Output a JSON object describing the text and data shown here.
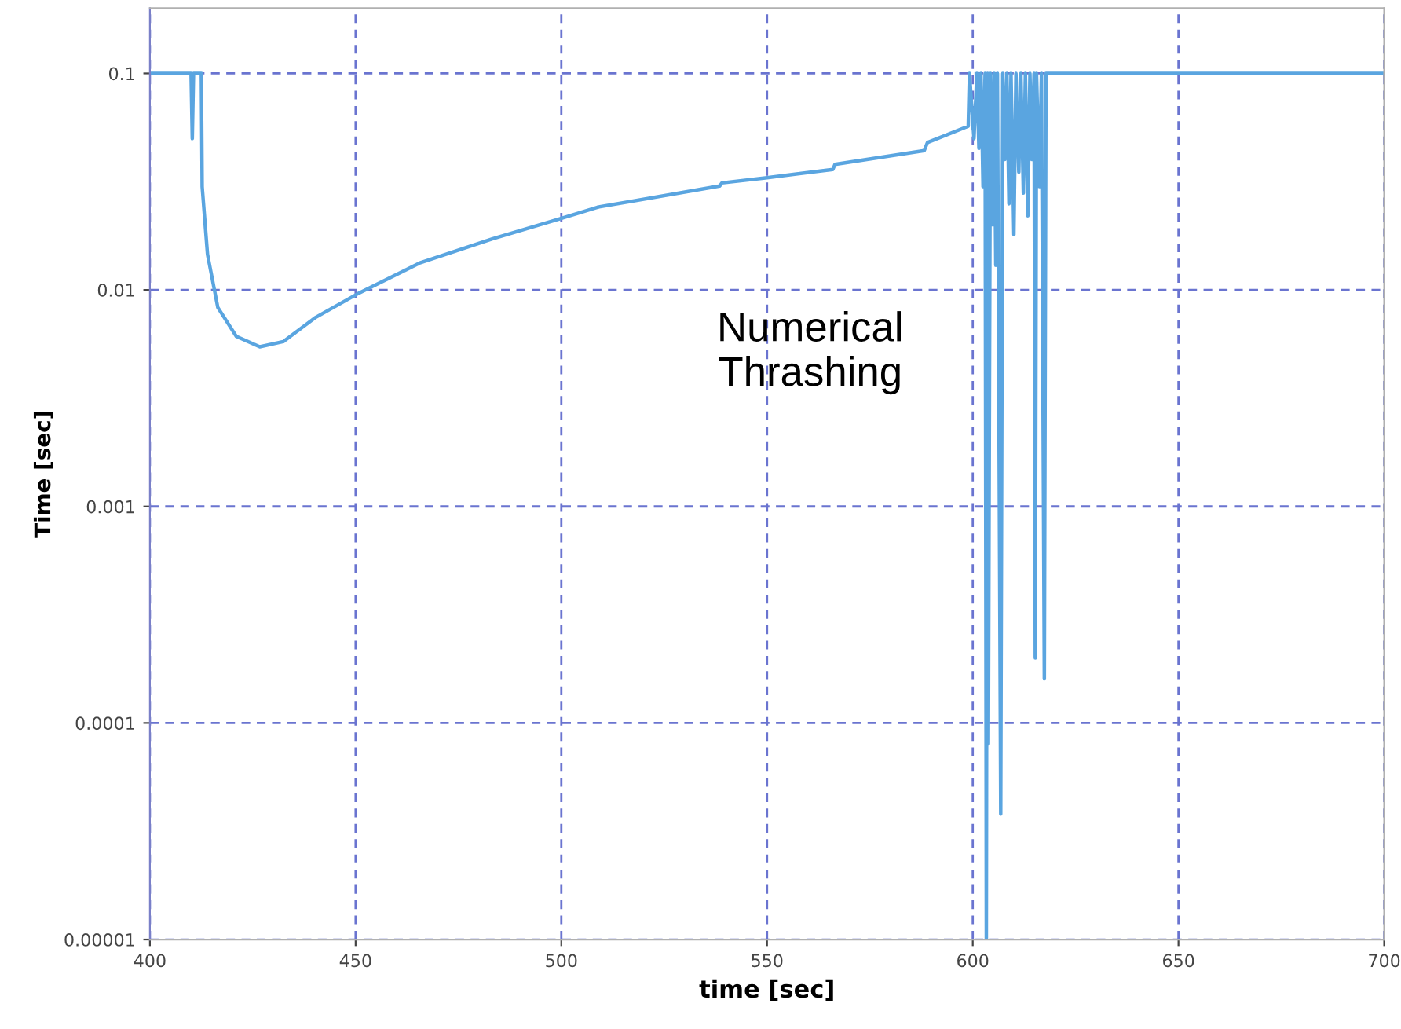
{
  "chart_data": {
    "type": "line",
    "xlabel": "time [sec]",
    "ylabel": "Time [sec]",
    "log": "y",
    "annotations": [
      "Numerical\nThrashing"
    ],
    "xlim": [
      400,
      700
    ],
    "xticks": [
      400,
      450,
      500,
      550,
      600,
      650,
      700
    ],
    "ylim": [
      1e-05,
      0.2
    ],
    "yticks": [
      {
        "value": 0.1,
        "label": "0.1"
      },
      {
        "value": 0.01,
        "label": "0.01"
      },
      {
        "value": 0.001,
        "label": "0.001"
      },
      {
        "value": 0.0001,
        "label": "0.0001"
      },
      {
        "value": 1e-05,
        "label": "0.00001"
      }
    ],
    "grid": true,
    "legend": false,
    "marker": "none",
    "line_style": "solid",
    "series": [
      {
        "color": "#5aa5e0",
        "x": [
          400,
          410.0,
          410.3,
          410.6,
          412.5,
          412.7,
          414.0,
          416.5,
          421.0,
          426.7,
          432.4,
          440.1,
          450.3,
          465.5,
          483.2,
          499.9,
          508.8,
          538.5,
          539.0,
          550,
          566,
          566.5,
          588.2,
          589,
          598.9,
          599.2,
          600.3,
          601.0,
          601.5,
          602.0,
          602.5,
          603.0,
          603.3,
          603.6,
          603.8,
          604.3,
          604.8,
          605.2,
          605.6,
          606.0,
          606.8,
          607.3,
          607.8,
          608.3,
          608.8,
          609.3,
          610.0,
          610.5,
          611.2,
          611.7,
          612.3,
          612.8,
          613.4,
          613.9,
          614.4,
          614.9,
          615.2,
          615.5,
          616.2,
          616.7,
          617.4,
          617.8,
          700
        ],
        "values": [
          0.1,
          0.1,
          0.05,
          0.1,
          0.1,
          0.03,
          0.0146,
          0.0083,
          0.0061,
          0.00546,
          0.00577,
          0.00743,
          0.00955,
          0.0133,
          0.0172,
          0.0214,
          0.0241,
          0.0302,
          0.0312,
          0.033,
          0.036,
          0.038,
          0.044,
          0.048,
          0.057,
          0.1,
          0.05,
          0.1,
          0.045,
          0.1,
          0.03,
          0.1,
          1e-05,
          0.1,
          8e-05,
          0.1,
          0.02,
          0.1,
          0.013,
          0.1,
          3.8e-05,
          0.1,
          0.04,
          0.1,
          0.025,
          0.1,
          0.018,
          0.1,
          0.035,
          0.1,
          0.028,
          0.1,
          0.022,
          0.1,
          0.04,
          0.1,
          0.0002,
          0.1,
          0.03,
          0.1,
          0.00016,
          0.1,
          0.1
        ]
      }
    ]
  }
}
